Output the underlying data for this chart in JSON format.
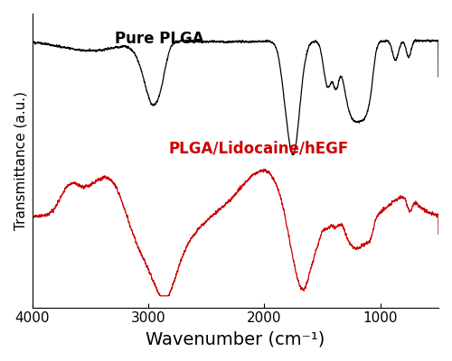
{
  "xlabel": "Wavenumber (cm⁻¹)",
  "ylabel": "Transmittance (a.u.)",
  "plga_label": "Pure PLGA",
  "plga_color": "#000000",
  "loaded_label": "PLGA/Lidocaine/hEGF",
  "loaded_color": "#cc0000",
  "plga_label_fontsize": 12,
  "loaded_label_fontsize": 12,
  "xlabel_fontsize": 14,
  "ylabel_fontsize": 11,
  "tick_fontsize": 11
}
